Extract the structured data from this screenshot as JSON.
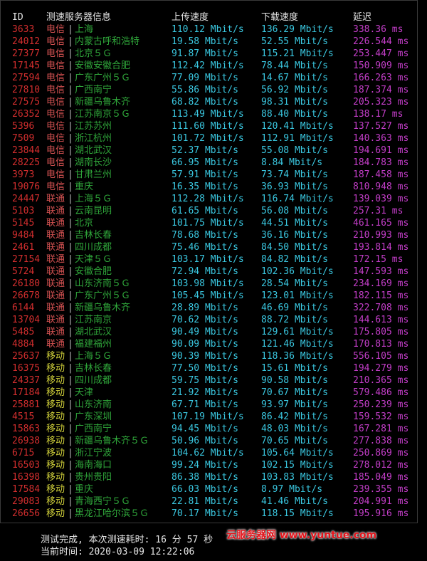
{
  "header": {
    "id": "ID",
    "server": "测速服务器信息",
    "upload": "上传速度",
    "download": "下载速度",
    "latency": "延迟"
  },
  "separator": "|",
  "rows": [
    {
      "id": "3633",
      "isp": "电信",
      "location": "上海",
      "upload": "110.12 Mbit/s",
      "download": "136.29 Mbit/s",
      "latency": "338.36 ms"
    },
    {
      "id": "24012",
      "isp": "电信",
      "location": "内蒙古呼和浩特",
      "upload": "19.58 Mbit/s",
      "download": "52.55 Mbit/s",
      "latency": "226.544 ms"
    },
    {
      "id": "27377",
      "isp": "电信",
      "location": "北京５Ｇ",
      "upload": "91.87 Mbit/s",
      "download": "115.21 Mbit/s",
      "latency": "253.447 ms"
    },
    {
      "id": "17145",
      "isp": "电信",
      "location": "安徽安徽合肥",
      "upload": "112.42 Mbit/s",
      "download": "78.44 Mbit/s",
      "latency": "150.909 ms"
    },
    {
      "id": "27594",
      "isp": "电信",
      "location": "广东广州５Ｇ",
      "upload": "77.09 Mbit/s",
      "download": "14.67 Mbit/s",
      "latency": "166.263 ms"
    },
    {
      "id": "27810",
      "isp": "电信",
      "location": "广西南宁",
      "upload": "55.86 Mbit/s",
      "download": "56.92 Mbit/s",
      "latency": "187.374 ms"
    },
    {
      "id": "27575",
      "isp": "电信",
      "location": "新疆乌鲁木齐",
      "upload": "68.82 Mbit/s",
      "download": "98.31 Mbit/s",
      "latency": "205.323 ms"
    },
    {
      "id": "26352",
      "isp": "电信",
      "location": "江苏南京５Ｇ",
      "upload": "113.49 Mbit/s",
      "download": "88.40 Mbit/s",
      "latency": "138.17 ms"
    },
    {
      "id": "5396",
      "isp": "电信",
      "location": "江苏苏州",
      "upload": "111.60 Mbit/s",
      "download": "120.41 Mbit/s",
      "latency": "137.527 ms"
    },
    {
      "id": "7509",
      "isp": "电信",
      "location": "浙江杭州",
      "upload": "101.72 Mbit/s",
      "download": "112.91 Mbit/s",
      "latency": "140.363 ms"
    },
    {
      "id": "23844",
      "isp": "电信",
      "location": "湖北武汉",
      "upload": "52.37 Mbit/s",
      "download": "55.08 Mbit/s",
      "latency": "194.691 ms"
    },
    {
      "id": "28225",
      "isp": "电信",
      "location": "湖南长沙",
      "upload": "66.95 Mbit/s",
      "download": "8.84 Mbit/s",
      "latency": "184.783 ms"
    },
    {
      "id": "3973",
      "isp": "电信",
      "location": "甘肃兰州",
      "upload": "57.91 Mbit/s",
      "download": "73.74 Mbit/s",
      "latency": "187.458 ms"
    },
    {
      "id": "19076",
      "isp": "电信",
      "location": "重庆",
      "upload": "16.35 Mbit/s",
      "download": "36.93 Mbit/s",
      "latency": "810.948 ms"
    },
    {
      "id": "24447",
      "isp": "联通",
      "location": "上海５Ｇ",
      "upload": "112.28 Mbit/s",
      "download": "116.74 Mbit/s",
      "latency": "139.039 ms"
    },
    {
      "id": "5103",
      "isp": "联通",
      "location": "云南昆明",
      "upload": "61.65 Mbit/s",
      "download": "56.08 Mbit/s",
      "latency": "257.31 ms"
    },
    {
      "id": "5145",
      "isp": "联通",
      "location": "北京",
      "upload": "101.75 Mbit/s",
      "download": "44.51 Mbit/s",
      "latency": "461.165 ms"
    },
    {
      "id": "9484",
      "isp": "联通",
      "location": "吉林长春",
      "upload": "78.68 Mbit/s",
      "download": "36.16 Mbit/s",
      "latency": "210.993 ms"
    },
    {
      "id": "2461",
      "isp": "联通",
      "location": "四川成都",
      "upload": "75.46 Mbit/s",
      "download": "84.50 Mbit/s",
      "latency": "193.814 ms"
    },
    {
      "id": "27154",
      "isp": "联通",
      "location": "天津５Ｇ",
      "upload": "103.17 Mbit/s",
      "download": "84.82 Mbit/s",
      "latency": "172.15 ms"
    },
    {
      "id": "5724",
      "isp": "联通",
      "location": "安徽合肥",
      "upload": "72.94 Mbit/s",
      "download": "102.36 Mbit/s",
      "latency": "147.593 ms"
    },
    {
      "id": "26180",
      "isp": "联通",
      "location": "山东济南５Ｇ",
      "upload": "103.98 Mbit/s",
      "download": "28.54 Mbit/s",
      "latency": "234.169 ms"
    },
    {
      "id": "26678",
      "isp": "联通",
      "location": "广东广州５Ｇ",
      "upload": "105.45 Mbit/s",
      "download": "123.01 Mbit/s",
      "latency": "182.115 ms"
    },
    {
      "id": "6144",
      "isp": "联通",
      "location": "新疆乌鲁木齐",
      "upload": "28.89 Mbit/s",
      "download": "46.69 Mbit/s",
      "latency": "322.708 ms"
    },
    {
      "id": "13704",
      "isp": "联通",
      "location": "江苏南京",
      "upload": "70.62 Mbit/s",
      "download": "88.72 Mbit/s",
      "latency": "144.613 ms"
    },
    {
      "id": "5485",
      "isp": "联通",
      "location": "湖北武汉",
      "upload": "90.49 Mbit/s",
      "download": "129.61 Mbit/s",
      "latency": "175.805 ms"
    },
    {
      "id": "4884",
      "isp": "联通",
      "location": "福建福州",
      "upload": "90.09 Mbit/s",
      "download": "121.46 Mbit/s",
      "latency": "170.813 ms"
    },
    {
      "id": "25637",
      "isp": "移动",
      "location": "上海５Ｇ",
      "upload": "90.39 Mbit/s",
      "download": "118.36 Mbit/s",
      "latency": "556.105 ms"
    },
    {
      "id": "16375",
      "isp": "移动",
      "location": "吉林长春",
      "upload": "77.50 Mbit/s",
      "download": "15.61 Mbit/s",
      "latency": "194.279 ms"
    },
    {
      "id": "24337",
      "isp": "移动",
      "location": "四川成都",
      "upload": "59.75 Mbit/s",
      "download": "90.58 Mbit/s",
      "latency": "210.365 ms"
    },
    {
      "id": "17184",
      "isp": "移动",
      "location": "天津",
      "upload": "21.92 Mbit/s",
      "download": "70.67 Mbit/s",
      "latency": "579.486 ms"
    },
    {
      "id": "25881",
      "isp": "移动",
      "location": "山东济南",
      "upload": "67.71 Mbit/s",
      "download": "93.97 Mbit/s",
      "latency": "250.239 ms"
    },
    {
      "id": "4515",
      "isp": "移动",
      "location": "广东深圳",
      "upload": "107.19 Mbit/s",
      "download": "86.42 Mbit/s",
      "latency": "159.532 ms"
    },
    {
      "id": "15863",
      "isp": "移动",
      "location": "广西南宁",
      "upload": "94.45 Mbit/s",
      "download": "48.03 Mbit/s",
      "latency": "167.281 ms"
    },
    {
      "id": "26938",
      "isp": "移动",
      "location": "新疆乌鲁木齐５Ｇ",
      "upload": "50.96 Mbit/s",
      "download": "70.65 Mbit/s",
      "latency": "277.838 ms"
    },
    {
      "id": "6715",
      "isp": "移动",
      "location": "浙江宁波",
      "upload": "104.62 Mbit/s",
      "download": "105.64 Mbit/s",
      "latency": "250.869 ms"
    },
    {
      "id": "16503",
      "isp": "移动",
      "location": "海南海口",
      "upload": "99.24 Mbit/s",
      "download": "102.15 Mbit/s",
      "latency": "278.012 ms"
    },
    {
      "id": "16398",
      "isp": "移动",
      "location": "贵州贵阳",
      "upload": "86.38 Mbit/s",
      "download": "103.83 Mbit/s",
      "latency": "185.049 ms"
    },
    {
      "id": "17584",
      "isp": "移动",
      "location": "重庆",
      "upload": "66.03 Mbit/s",
      "download": "8.97 Mbit/s",
      "latency": "239.355 ms"
    },
    {
      "id": "29083",
      "isp": "移动",
      "location": "青海西宁５Ｇ",
      "upload": "22.81 Mbit/s",
      "download": "41.46 Mbit/s",
      "latency": "204.991 ms"
    },
    {
      "id": "26656",
      "isp": "移动",
      "location": "黑龙江哈尔滨５Ｇ",
      "upload": "70.17 Mbit/s",
      "download": "118.15 Mbit/s",
      "latency": "195.916 ms"
    }
  ],
  "footer": {
    "completed": "测试完成, 本次测速耗时: 16 分 57 秒",
    "current_time": "当前时间: 2020-03-09 12:22:06"
  },
  "watermark": "云服务器网 www.yuntue.com",
  "colors": {
    "background": "#000000",
    "id": "#d22e2e",
    "isp_telecom_unicom": "#d05050",
    "isp_mobile": "#cfcf3a",
    "location": "#2fa63a",
    "speed": "#3ac7e0",
    "latency": "#c43ec9",
    "watermark": "#e4141b"
  }
}
